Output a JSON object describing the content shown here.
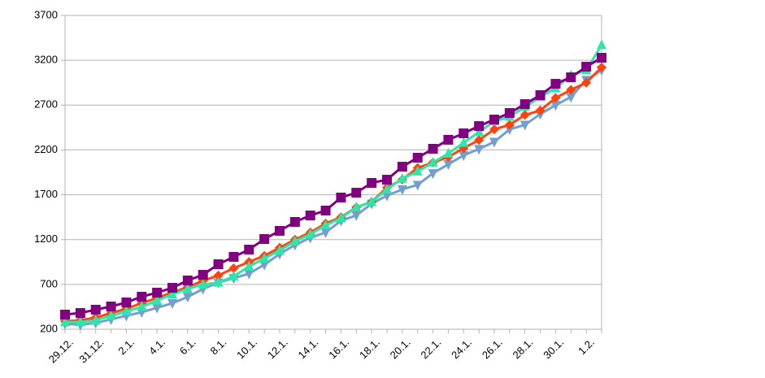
{
  "chart_data": {
    "type": "line",
    "categories": [
      "29.12.",
      null,
      "31.12.",
      null,
      "2.1.",
      null,
      "4.1.",
      null,
      "6.1.",
      null,
      "8.1.",
      null,
      "10.1.",
      null,
      "12.1.",
      null,
      "14.1.",
      null,
      "16.1.",
      null,
      "18.1.",
      null,
      "20.1.",
      null,
      "22.1.",
      null,
      "24.1.",
      null,
      "26.1.",
      null,
      "28.1.",
      null,
      "30.1.",
      null,
      "1.2.",
      null
    ],
    "series": [
      {
        "color": "#729fcf",
        "marker": "triangle-down",
        "values": [
          260,
          250,
          270,
          310,
          350,
          390,
          440,
          490,
          560,
          650,
          720,
          770,
          820,
          920,
          1040,
          1140,
          1220,
          1280,
          1410,
          1470,
          1600,
          1690,
          1760,
          1810,
          1940,
          2040,
          2140,
          2210,
          2290,
          2430,
          2480,
          2600,
          2700,
          2790,
          2980,
          3090
        ]
      },
      {
        "color": "#ff420e",
        "marker": "diamond",
        "values": [
          290,
          300,
          330,
          380,
          430,
          490,
          550,
          610,
          670,
          740,
          800,
          880,
          950,
          1020,
          1110,
          1200,
          1280,
          1380,
          1450,
          1560,
          1620,
          1780,
          1870,
          2000,
          2060,
          2120,
          2220,
          2310,
          2430,
          2480,
          2590,
          2640,
          2780,
          2870,
          2950,
          3120
        ]
      },
      {
        "color": "#2ee6a6",
        "marker": "triangle-up",
        "values": [
          280,
          280,
          300,
          350,
          400,
          450,
          520,
          590,
          650,
          700,
          720,
          790,
          900,
          990,
          1080,
          1180,
          1260,
          1360,
          1440,
          1560,
          1620,
          1760,
          1880,
          1960,
          2060,
          2160,
          2280,
          2400,
          2520,
          2570,
          2680,
          2790,
          2890,
          3030,
          3090,
          3370
        ]
      },
      {
        "color": "#800080",
        "marker": "square",
        "values": [
          363,
          381,
          418,
          454,
          499,
          563,
          608,
          662,
          744,
          807,
          925,
          1007,
          1088,
          1206,
          1297,
          1397,
          1469,
          1524,
          1669,
          1723,
          1832,
          1868,
          2013,
          2113,
          2213,
          2313,
          2385,
          2466,
          2539,
          2612,
          2711,
          2811,
          2938,
          3010,
          3128,
          3228
        ]
      }
    ],
    "ylim": [
      200,
      3700
    ],
    "yticks": [
      200,
      700,
      1200,
      1700,
      2200,
      2700,
      3200,
      3700
    ],
    "grid": true
  }
}
